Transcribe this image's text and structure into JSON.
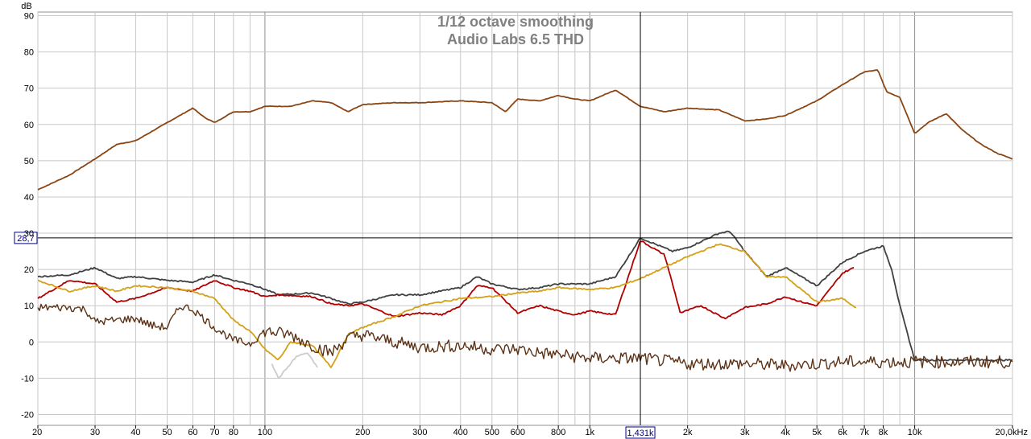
{
  "chart_data": {
    "type": "line",
    "title": "1/12 octave smoothing",
    "subtitle": "Audio Labs 6.5 THD",
    "ylabel": "dB",
    "xlabel": "",
    "x_scale": "log",
    "xlim": [
      20,
      20000
    ],
    "ylim": [
      -23,
      91
    ],
    "grid": true,
    "legend": "none",
    "x_ticks": [
      {
        "v": 20,
        "label": "20"
      },
      {
        "v": 30,
        "label": "30"
      },
      {
        "v": 40,
        "label": "40"
      },
      {
        "v": 50,
        "label": "50"
      },
      {
        "v": 60,
        "label": "60"
      },
      {
        "v": 70,
        "label": "70"
      },
      {
        "v": 80,
        "label": "80"
      },
      {
        "v": 100,
        "label": "100"
      },
      {
        "v": 200,
        "label": "200"
      },
      {
        "v": 300,
        "label": "300"
      },
      {
        "v": 400,
        "label": "400"
      },
      {
        "v": 500,
        "label": "500"
      },
      {
        "v": 600,
        "label": "600"
      },
      {
        "v": 800,
        "label": "800"
      },
      {
        "v": 1000,
        "label": "1k"
      },
      {
        "v": 2000,
        "label": "2k"
      },
      {
        "v": 3000,
        "label": "3k"
      },
      {
        "v": 4000,
        "label": "4k"
      },
      {
        "v": 5000,
        "label": "5k"
      },
      {
        "v": 6000,
        "label": "6k"
      },
      {
        "v": 7000,
        "label": "7k"
      },
      {
        "v": 8000,
        "label": "8k"
      },
      {
        "v": 10000,
        "label": "10k"
      },
      {
        "v": 20000,
        "label": "20,0kHz"
      }
    ],
    "y_ticks": [
      90,
      80,
      70,
      60,
      50,
      40,
      30,
      20,
      10,
      0,
      -10,
      -20
    ],
    "cursor": {
      "x": 1431,
      "x_label": "1,431k",
      "y": 28.7,
      "y_label": "28,7"
    },
    "colors": {
      "background": "#ffffff",
      "grid": "#c8c8c8",
      "major_grid": "#909090",
      "title": "#808080",
      "cursor": "#000000",
      "cursor_label": "#000080"
    },
    "series": [
      {
        "color": "#8B4513",
        "points": [
          [
            20,
            42
          ],
          [
            25,
            46
          ],
          [
            30,
            50.5
          ],
          [
            35,
            54.5
          ],
          [
            40,
            55.5
          ],
          [
            50,
            60.5
          ],
          [
            60,
            64.5
          ],
          [
            65,
            62
          ],
          [
            70,
            60.5
          ],
          [
            80,
            63.5
          ],
          [
            90,
            63.5
          ],
          [
            100,
            65
          ],
          [
            120,
            65
          ],
          [
            140,
            66.5
          ],
          [
            160,
            66
          ],
          [
            180,
            63.5
          ],
          [
            200,
            65.5
          ],
          [
            250,
            66
          ],
          [
            300,
            66
          ],
          [
            400,
            66.5
          ],
          [
            500,
            66
          ],
          [
            550,
            63.5
          ],
          [
            600,
            67
          ],
          [
            700,
            66.5
          ],
          [
            800,
            68
          ],
          [
            900,
            67
          ],
          [
            1000,
            66.5
          ],
          [
            1200,
            69.5
          ],
          [
            1431,
            65
          ],
          [
            1700,
            63.5
          ],
          [
            2000,
            64.5
          ],
          [
            2500,
            64
          ],
          [
            3000,
            61
          ],
          [
            3500,
            61.5
          ],
          [
            4000,
            62.5
          ],
          [
            5000,
            66.5
          ],
          [
            6000,
            71
          ],
          [
            7000,
            74.5
          ],
          [
            7700,
            75
          ],
          [
            8200,
            69
          ],
          [
            9000,
            67.5
          ],
          [
            10000,
            57.5
          ],
          [
            11000,
            60.5
          ],
          [
            12500,
            63
          ],
          [
            14000,
            58.5
          ],
          [
            16000,
            54.5
          ],
          [
            18000,
            52
          ],
          [
            20000,
            50.5
          ]
        ]
      },
      {
        "color": "#404040",
        "points": [
          [
            20,
            18
          ],
          [
            25,
            18.5
          ],
          [
            30,
            20.5
          ],
          [
            35,
            17.5
          ],
          [
            40,
            18
          ],
          [
            50,
            17
          ],
          [
            60,
            16.5
          ],
          [
            70,
            18.5
          ],
          [
            80,
            17
          ],
          [
            90,
            16
          ],
          [
            100,
            14.5
          ],
          [
            110,
            13
          ],
          [
            140,
            13.5
          ],
          [
            160,
            12
          ],
          [
            180,
            10.5
          ],
          [
            200,
            11
          ],
          [
            250,
            13
          ],
          [
            300,
            13
          ],
          [
            400,
            15
          ],
          [
            450,
            18
          ],
          [
            500,
            16
          ],
          [
            600,
            14.5
          ],
          [
            700,
            15
          ],
          [
            800,
            16
          ],
          [
            1000,
            16
          ],
          [
            1200,
            18
          ],
          [
            1431,
            28.7
          ],
          [
            1800,
            25
          ],
          [
            2000,
            26
          ],
          [
            2500,
            30
          ],
          [
            2700,
            30.5
          ],
          [
            3000,
            25
          ],
          [
            3500,
            18
          ],
          [
            4000,
            20.5
          ],
          [
            5000,
            15.5
          ],
          [
            6000,
            22
          ],
          [
            7000,
            25
          ],
          [
            8000,
            26.5
          ],
          [
            8500,
            20
          ],
          [
            9000,
            10
          ],
          [
            10000,
            -5
          ],
          [
            11000,
            -5
          ],
          [
            20000,
            -5
          ]
        ]
      },
      {
        "color": "#B00000",
        "points": [
          [
            20,
            12
          ],
          [
            25,
            17
          ],
          [
            30,
            16
          ],
          [
            35,
            11
          ],
          [
            40,
            12
          ],
          [
            50,
            15
          ],
          [
            60,
            14
          ],
          [
            70,
            17
          ],
          [
            80,
            15
          ],
          [
            90,
            14
          ],
          [
            100,
            12.5
          ],
          [
            110,
            13
          ],
          [
            140,
            12.5
          ],
          [
            160,
            10.5
          ],
          [
            180,
            10
          ],
          [
            200,
            10.5
          ],
          [
            250,
            7
          ],
          [
            300,
            8
          ],
          [
            350,
            7.5
          ],
          [
            400,
            10
          ],
          [
            450,
            15.5
          ],
          [
            500,
            15
          ],
          [
            600,
            8
          ],
          [
            700,
            10
          ],
          [
            800,
            8.5
          ],
          [
            900,
            7.5
          ],
          [
            1000,
            8.5
          ],
          [
            1200,
            7.5
          ],
          [
            1431,
            28
          ],
          [
            1700,
            24
          ],
          [
            1900,
            8
          ],
          [
            2200,
            10
          ],
          [
            2600,
            6.5
          ],
          [
            3000,
            9.5
          ],
          [
            3500,
            10.5
          ],
          [
            4000,
            12.5
          ],
          [
            4500,
            11
          ],
          [
            5000,
            10
          ],
          [
            6000,
            19
          ],
          [
            6500,
            20.5
          ]
        ]
      },
      {
        "color": "#D4A017",
        "points": [
          [
            20,
            17
          ],
          [
            25,
            14
          ],
          [
            30,
            15.5
          ],
          [
            35,
            14
          ],
          [
            40,
            15.5
          ],
          [
            50,
            15
          ],
          [
            60,
            14
          ],
          [
            70,
            12
          ],
          [
            80,
            6
          ],
          [
            90,
            3
          ],
          [
            100,
            -2
          ],
          [
            110,
            -5
          ],
          [
            120,
            0
          ],
          [
            140,
            -1
          ],
          [
            160,
            -7
          ],
          [
            180,
            2
          ],
          [
            200,
            4
          ],
          [
            250,
            7
          ],
          [
            300,
            10
          ],
          [
            400,
            12
          ],
          [
            500,
            12.5
          ],
          [
            600,
            13.5
          ],
          [
            700,
            14
          ],
          [
            800,
            15
          ],
          [
            1000,
            14.5
          ],
          [
            1200,
            15
          ],
          [
            1431,
            17.5
          ],
          [
            2000,
            23.5
          ],
          [
            2500,
            27
          ],
          [
            3000,
            25
          ],
          [
            3500,
            18
          ],
          [
            4000,
            18
          ],
          [
            5000,
            11
          ],
          [
            6000,
            12
          ],
          [
            6600,
            9.5
          ]
        ]
      },
      {
        "color": "#CCCCCC",
        "points": [
          [
            105,
            -6
          ],
          [
            110,
            -10
          ],
          [
            115,
            -8
          ],
          [
            125,
            -4
          ],
          [
            135,
            -3
          ],
          [
            145,
            -7
          ]
        ]
      },
      {
        "color": "#5C3317",
        "points": [
          [
            20,
            9.5
          ],
          [
            25,
            9.5
          ],
          [
            28,
            9
          ],
          [
            30,
            5.5
          ],
          [
            40,
            6.5
          ],
          [
            45,
            4.5
          ],
          [
            50,
            4
          ],
          [
            55,
            10
          ],
          [
            60,
            9
          ],
          [
            70,
            4
          ],
          [
            80,
            0.5
          ],
          [
            90,
            -0.5
          ],
          [
            100,
            3
          ],
          [
            120,
            2
          ],
          [
            140,
            -1
          ],
          [
            160,
            -3
          ],
          [
            180,
            1
          ],
          [
            200,
            2
          ],
          [
            250,
            0
          ],
          [
            300,
            -1.5
          ],
          [
            400,
            -1
          ],
          [
            500,
            -2
          ],
          [
            600,
            -2
          ],
          [
            700,
            -3
          ],
          [
            800,
            -3.5
          ],
          [
            1000,
            -4.5
          ],
          [
            1431,
            -4.5
          ],
          [
            2000,
            -6
          ],
          [
            3000,
            -6
          ],
          [
            4000,
            -6.5
          ],
          [
            5000,
            -6
          ],
          [
            6000,
            -5.5
          ],
          [
            8000,
            -5.5
          ],
          [
            10000,
            -5.5
          ],
          [
            14000,
            -5.5
          ],
          [
            20000,
            -5.5
          ]
        ]
      }
    ]
  }
}
